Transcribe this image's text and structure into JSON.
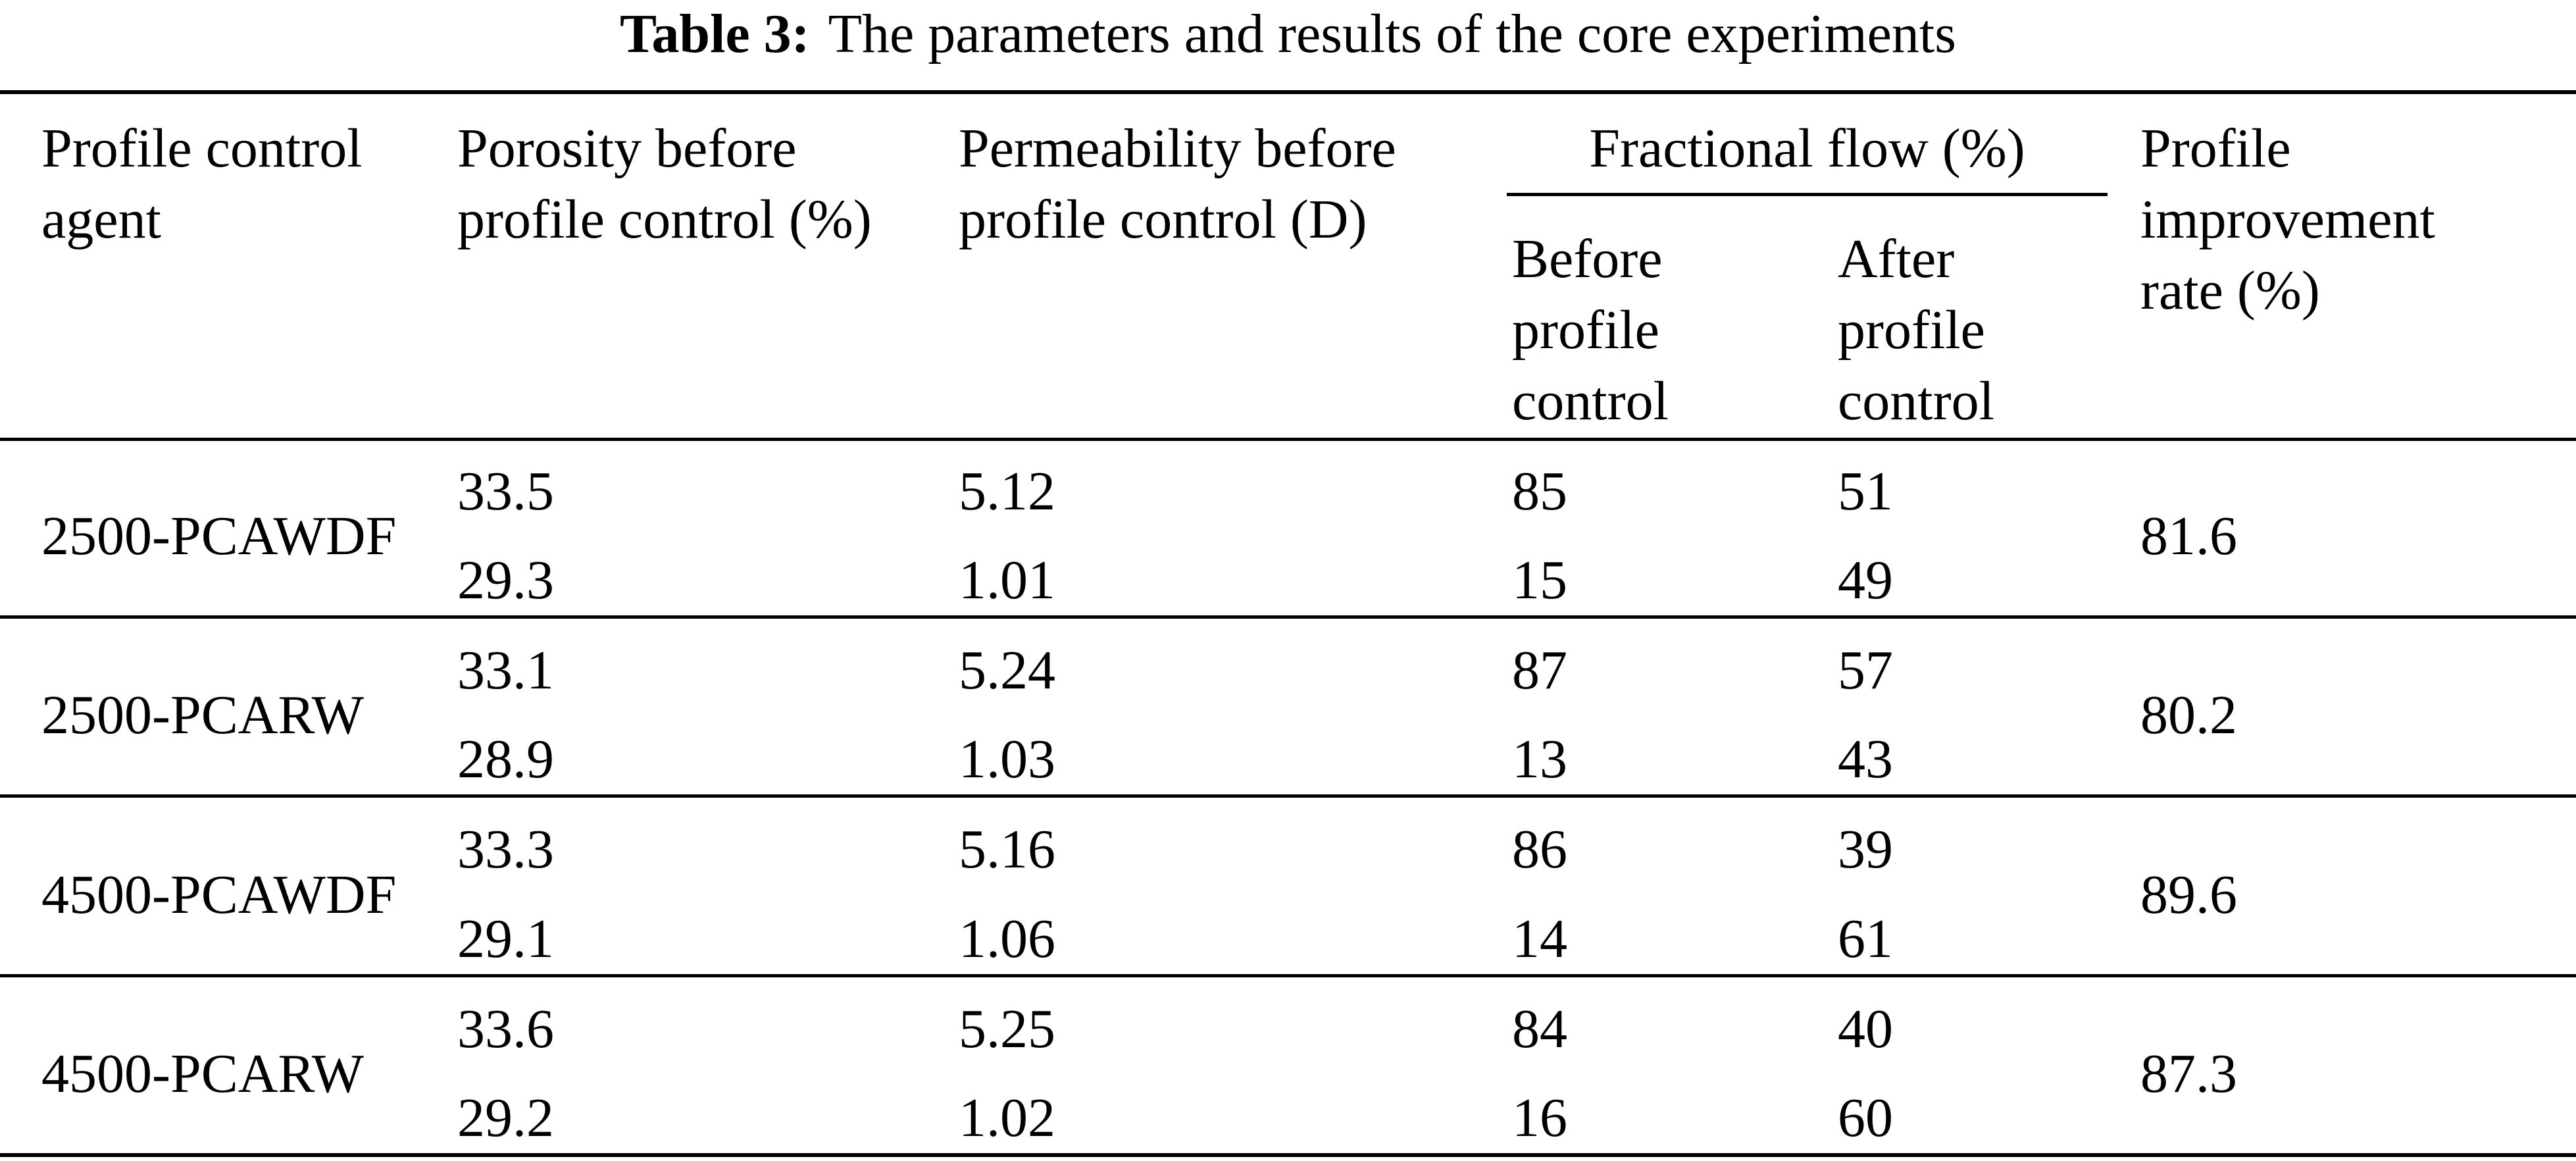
{
  "caption": {
    "label": "Table 3:",
    "text": "The parameters and results of the core experiments"
  },
  "table": {
    "headers": {
      "agent": [
        "Profile control",
        "agent"
      ],
      "porosity": [
        "Porosity before",
        "profile control (%)"
      ],
      "permeability": [
        "Permeability before",
        "profile control (D)"
      ],
      "fractional_flow": "Fractional flow (%)",
      "before": [
        "Before",
        "profile",
        "control"
      ],
      "after": [
        "After",
        "profile",
        "control"
      ],
      "improvement": [
        "Profile",
        "improvement",
        "rate (%)"
      ]
    },
    "rows": [
      {
        "agent": "2500-PCAWDF",
        "porosity": [
          "33.5",
          "29.3"
        ],
        "permeability": [
          "5.12",
          "1.01"
        ],
        "before": [
          "85",
          "15"
        ],
        "after": [
          "51",
          "49"
        ],
        "improvement": "81.6"
      },
      {
        "agent": "2500-PCARW",
        "porosity": [
          "33.1",
          "28.9"
        ],
        "permeability": [
          "5.24",
          "1.03"
        ],
        "before": [
          "87",
          "13"
        ],
        "after": [
          "57",
          "43"
        ],
        "improvement": "80.2"
      },
      {
        "agent": "4500-PCAWDF",
        "porosity": [
          "33.3",
          "29.1"
        ],
        "permeability": [
          "5.16",
          "1.06"
        ],
        "before": [
          "86",
          "14"
        ],
        "after": [
          "39",
          "61"
        ],
        "improvement": "89.6"
      },
      {
        "agent": "4500-PCARW",
        "porosity": [
          "33.6",
          "29.2"
        ],
        "permeability": [
          "5.25",
          "1.02"
        ],
        "before": [
          "84",
          "16"
        ],
        "after": [
          "40",
          "60"
        ],
        "improvement": "87.3"
      }
    ]
  }
}
